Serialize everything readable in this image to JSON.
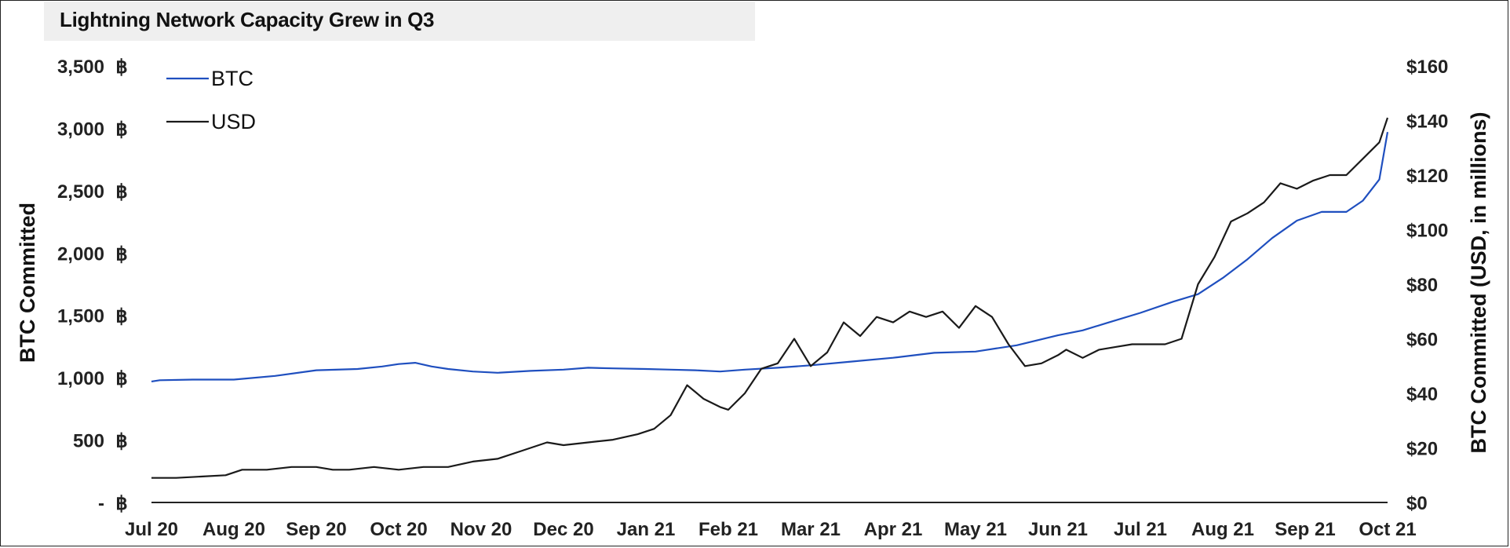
{
  "chart_data": {
    "type": "line",
    "title": "Lightning Network Capacity Grew in Q3",
    "ylabel_left": "BTC Committed",
    "ylabel_right": "BTC Committed (USD, in millions)",
    "y_left": {
      "min": 0,
      "max": 3500,
      "ticks": [
        0,
        500,
        1000,
        1500,
        2000,
        2500,
        3000,
        3500
      ],
      "tick_labels": [
        "-",
        "500",
        "1,000",
        "1,500",
        "2,000",
        "2,500",
        "3,000",
        "3,500"
      ],
      "unit_symbol": "฿"
    },
    "y_right": {
      "min": 0,
      "max": 160,
      "ticks": [
        0,
        20,
        40,
        60,
        80,
        100,
        120,
        140,
        160
      ],
      "tick_labels": [
        "$0",
        "$20",
        "$40",
        "$60",
        "$80",
        "$100",
        "$120",
        "$140",
        "$160"
      ]
    },
    "x_tick_labels": [
      "Jul 20",
      "Aug 20",
      "Sep 20",
      "Oct 20",
      "Nov 20",
      "Dec 20",
      "Jan 21",
      "Feb 21",
      "Mar 21",
      "Apr 21",
      "May 21",
      "Jun 21",
      "Jul 21",
      "Aug 21",
      "Sep 21",
      "Oct 21"
    ],
    "legend_placement": "top-left",
    "series": [
      {
        "name": "BTC",
        "axis": "left",
        "color": "#1f4fbf",
        "x": [
          0,
          0.1,
          0.5,
          1.0,
          1.5,
          2.0,
          2.5,
          2.8,
          3.0,
          3.2,
          3.4,
          3.6,
          3.9,
          4.2,
          4.6,
          5.0,
          5.3,
          5.6,
          6.0,
          6.3,
          6.6,
          6.9,
          7.2,
          7.6,
          8.0,
          8.5,
          9.0,
          9.5,
          10.0,
          10.5,
          11.0,
          11.3,
          11.6,
          12.0,
          12.4,
          12.7,
          13.0,
          13.3,
          13.6,
          13.9,
          14.2,
          14.5,
          14.7,
          14.9,
          15.0
        ],
        "y": [
          970,
          980,
          985,
          985,
          1015,
          1060,
          1070,
          1090,
          1110,
          1120,
          1090,
          1070,
          1050,
          1040,
          1055,
          1065,
          1080,
          1075,
          1070,
          1065,
          1060,
          1050,
          1065,
          1080,
          1100,
          1130,
          1160,
          1200,
          1210,
          1260,
          1340,
          1380,
          1440,
          1520,
          1610,
          1670,
          1800,
          1950,
          2120,
          2260,
          2330,
          2330,
          2420,
          2590,
          2970
        ]
      },
      {
        "name": "USD",
        "axis": "right",
        "color": "#1a1a1a",
        "x": [
          0,
          0.3,
          0.6,
          0.9,
          1.1,
          1.4,
          1.7,
          2.0,
          2.2,
          2.4,
          2.7,
          3.0,
          3.3,
          3.6,
          3.9,
          4.2,
          4.5,
          4.8,
          5.0,
          5.3,
          5.6,
          5.9,
          6.1,
          6.3,
          6.5,
          6.7,
          6.9,
          7.0,
          7.2,
          7.4,
          7.6,
          7.8,
          8.0,
          8.2,
          8.4,
          8.6,
          8.8,
          9.0,
          9.2,
          9.4,
          9.6,
          9.8,
          10.0,
          10.2,
          10.4,
          10.6,
          10.8,
          11.0,
          11.1,
          11.3,
          11.5,
          11.7,
          11.9,
          12.1,
          12.3,
          12.5,
          12.7,
          12.9,
          13.1,
          13.3,
          13.5,
          13.7,
          13.9,
          14.1,
          14.3,
          14.5,
          14.7,
          14.9,
          15.0
        ],
        "y": [
          9,
          9,
          9.5,
          10,
          12,
          12,
          13,
          13,
          12,
          12,
          13,
          12,
          13,
          13,
          15,
          16,
          19,
          22,
          21,
          22,
          23,
          25,
          27,
          32,
          43,
          38,
          35,
          34,
          40,
          49,
          51,
          60,
          50,
          55,
          66,
          61,
          68,
          66,
          70,
          68,
          70,
          64,
          72,
          68,
          58,
          50,
          51,
          54,
          56,
          53,
          56,
          57,
          58,
          58,
          58,
          60,
          80,
          90,
          103,
          106,
          110,
          117,
          115,
          118,
          120,
          120,
          126,
          132,
          141
        ]
      }
    ]
  }
}
